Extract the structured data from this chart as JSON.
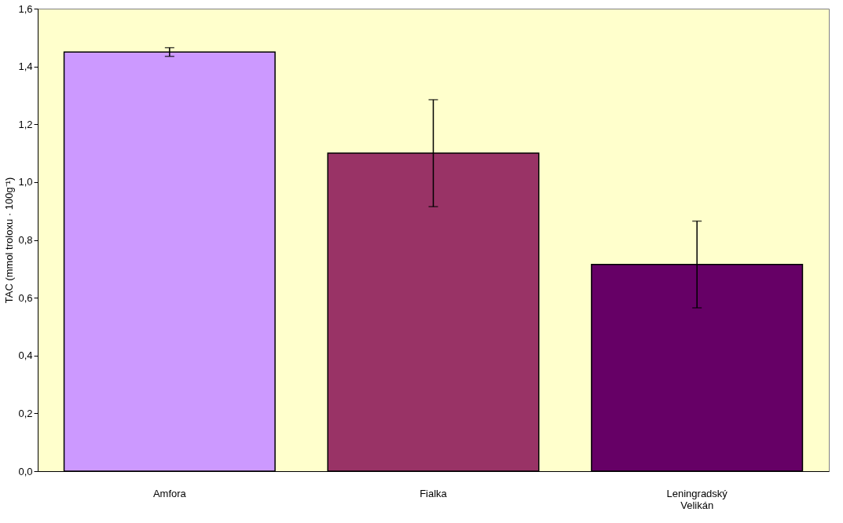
{
  "chart_data": {
    "type": "bar",
    "ylabel": "TAC (mmol troloxu · 100g⁻¹)",
    "categories": [
      "Amfora",
      "Fialka",
      "Leningradský Velikán"
    ],
    "values": [
      1.45,
      1.1,
      0.715
    ],
    "errors": [
      0.015,
      0.185,
      0.15
    ],
    "colors": [
      "#cc99ff",
      "#993366",
      "#660066"
    ],
    "ylim": [
      0,
      1.6
    ],
    "yticks": [
      {
        "value": 0,
        "label": "0,0"
      },
      {
        "value": 0.2,
        "label": "0,2"
      },
      {
        "value": 0.4,
        "label": "0,4"
      },
      {
        "value": 0.6,
        "label": "0,6"
      },
      {
        "value": 0.8,
        "label": "0,8"
      },
      {
        "value": 1.0,
        "label": "1,0"
      },
      {
        "value": 1.2,
        "label": "1,2"
      },
      {
        "value": 1.4,
        "label": "1,4"
      },
      {
        "value": 1.6,
        "label": "1,6"
      }
    ],
    "grid": false,
    "legend": false
  }
}
